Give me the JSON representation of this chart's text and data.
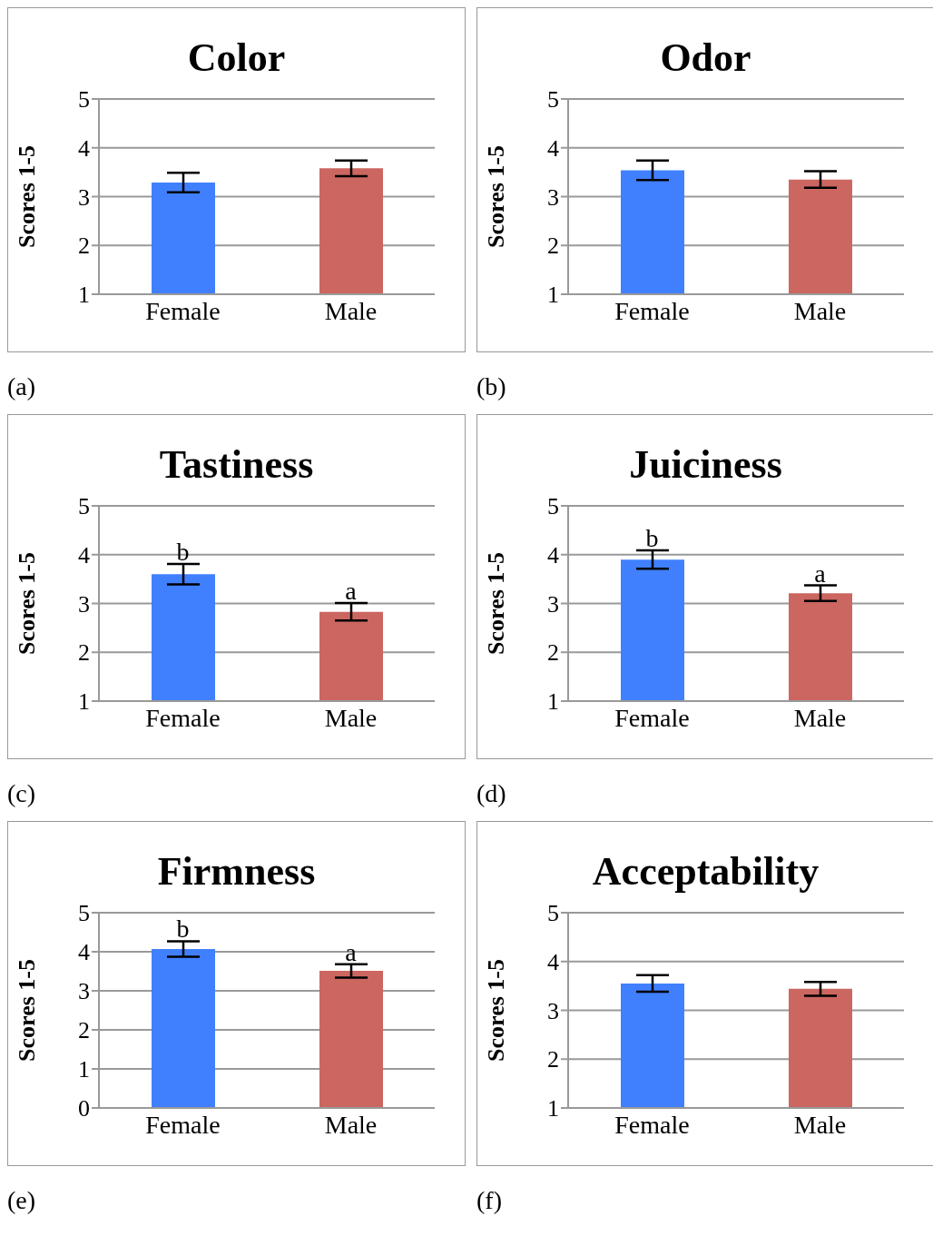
{
  "chart_data": [
    {
      "type": "bar",
      "title": "Color",
      "ylabel": "Scores 1-5",
      "categories": [
        "Female",
        "Male"
      ],
      "values": [
        3.29,
        3.58
      ],
      "errors": [
        0.2,
        0.16
      ],
      "colors": [
        "#4080ff",
        "#cc6660"
      ],
      "ylim": [
        1,
        5
      ],
      "yticks": [
        1,
        2,
        3,
        4,
        5
      ],
      "grid": "y",
      "annotations": [
        "(a)"
      ]
    },
    {
      "type": "bar",
      "title": "Odor",
      "ylabel": "Scores 1-5",
      "categories": [
        "Female",
        "Male"
      ],
      "values": [
        3.54,
        3.35
      ],
      "errors": [
        0.2,
        0.17
      ],
      "colors": [
        "#4080ff",
        "#cc6660"
      ],
      "ylim": [
        1,
        5
      ],
      "yticks": [
        1,
        2,
        3,
        4,
        5
      ],
      "grid": "y",
      "annotations": [
        "(b)"
      ]
    },
    {
      "type": "bar",
      "title": "Tastiness",
      "ylabel": "Scores 1-5",
      "categories": [
        "Female",
        "Male"
      ],
      "values": [
        3.6,
        2.83
      ],
      "errors": [
        0.21,
        0.18
      ],
      "colors": [
        "#4080ff",
        "#cc6660"
      ],
      "ylim": [
        1,
        5
      ],
      "yticks": [
        1,
        2,
        3,
        4,
        5
      ],
      "grid": "y",
      "annotations": [
        {
          "text": "b",
          "x": "Female",
          "y": 3.81
        },
        {
          "text": "a",
          "x": "Male",
          "y": 3.01
        },
        "(c)"
      ]
    },
    {
      "type": "bar",
      "title": "Juiciness",
      "ylabel": "Scores 1-5",
      "categories": [
        "Female",
        "Male"
      ],
      "values": [
        3.9,
        3.21
      ],
      "errors": [
        0.19,
        0.16
      ],
      "colors": [
        "#4080ff",
        "#cc6660"
      ],
      "ylim": [
        1,
        5
      ],
      "yticks": [
        1,
        2,
        3,
        4,
        5
      ],
      "grid": "y",
      "annotations": [
        {
          "text": "b",
          "x": "Female",
          "y": 4.09
        },
        {
          "text": "a",
          "x": "Male",
          "y": 3.37
        },
        "(d)"
      ]
    },
    {
      "type": "bar",
      "title": "Firmness",
      "ylabel": "Scores 1-5",
      "categories": [
        "Female",
        "Male"
      ],
      "values": [
        4.07,
        3.51
      ],
      "errors": [
        0.2,
        0.17
      ],
      "colors": [
        "#4080ff",
        "#cc6660"
      ],
      "ylim": [
        0,
        5
      ],
      "yticks": [
        0,
        1,
        2,
        3,
        4,
        5
      ],
      "grid": "y",
      "annotations": [
        {
          "text": "b",
          "x": "Female",
          "y": 4.27
        },
        {
          "text": "a",
          "x": "Male",
          "y": 3.68
        },
        "(e)"
      ]
    },
    {
      "type": "bar",
      "title": "Acceptability",
      "ylabel": "Scores 1-5",
      "categories": [
        "Female",
        "Male"
      ],
      "values": [
        3.55,
        3.44
      ],
      "errors": [
        0.17,
        0.14
      ],
      "colors": [
        "#4080ff",
        "#cc6660"
      ],
      "ylim": [
        1,
        5
      ],
      "yticks": [
        1,
        2,
        3,
        4,
        5
      ],
      "grid": "y",
      "annotations": [
        "(f)"
      ]
    }
  ]
}
